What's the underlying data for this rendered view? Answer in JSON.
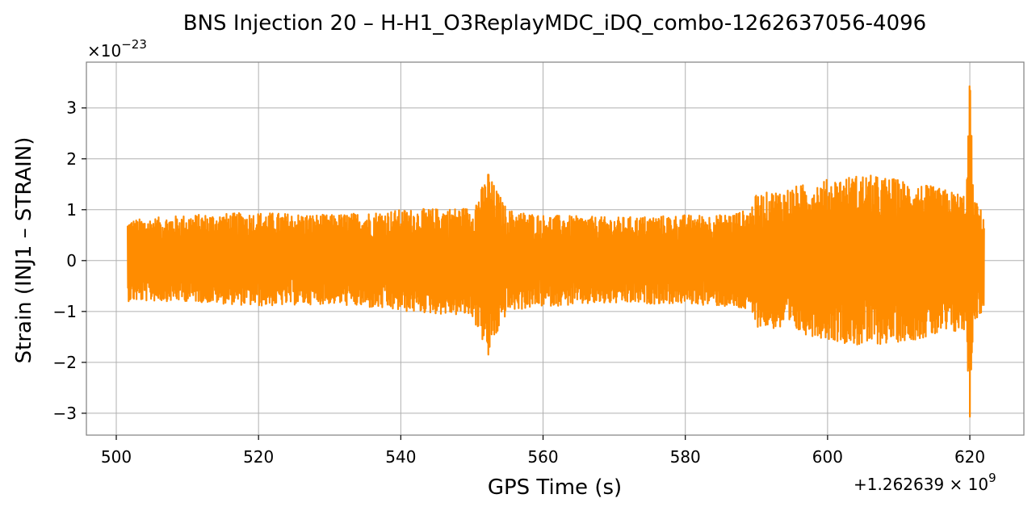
{
  "chart_data": {
    "type": "line",
    "title": "BNS Injection 20 – H-H1_O3ReplayMDC_iDQ_combo-1262637056-4096",
    "xlabel": "GPS Time (s)",
    "ylabel": "Strain (INJ1 – STRAIN)",
    "x_offset_text": "+1.262639 × 10",
    "x_offset_exponent": "9",
    "y_scale_text": "×10",
    "y_scale_exponent": "−23",
    "xlim": [
      495.8,
      627.6
    ],
    "ylim": [
      -3.43,
      3.9
    ],
    "x_ticks": [
      500,
      520,
      540,
      560,
      580,
      600,
      620
    ],
    "x_tick_labels": [
      "500",
      "520",
      "540",
      "560",
      "580",
      "600",
      "620"
    ],
    "y_ticks": [
      -3,
      -2,
      -1,
      0,
      1,
      2,
      3
    ],
    "y_tick_labels": [
      "−3",
      "−2",
      "−1",
      "0",
      "1",
      "2",
      "3"
    ],
    "grid": true,
    "line_color": "#ff8c00",
    "series": [
      {
        "x_start": 501.6,
        "x_end": 622.0,
        "envelope_x": [
          501.6,
          510,
          520,
          530,
          540,
          550,
          552.3,
          555,
          560,
          570,
          580,
          585,
          589,
          590,
          595,
          600,
          605,
          610,
          615,
          619.5,
          620.0,
          620.5,
          622.0
        ],
        "envelope_upper": [
          0.8,
          0.9,
          0.95,
          0.9,
          1.0,
          1.05,
          1.7,
          1.0,
          0.9,
          0.85,
          0.9,
          0.9,
          1.0,
          1.3,
          1.45,
          1.6,
          1.7,
          1.6,
          1.45,
          1.3,
          3.6,
          1.25,
          0.9
        ],
        "envelope_lower": [
          -0.8,
          -0.8,
          -0.9,
          -0.85,
          -1.0,
          -1.1,
          -1.85,
          -1.0,
          -0.9,
          -0.85,
          -0.85,
          -0.9,
          -1.0,
          -1.3,
          -1.4,
          -1.55,
          -1.7,
          -1.6,
          -1.5,
          -1.4,
          -3.1,
          -1.2,
          -1.0
        ]
      }
    ]
  }
}
